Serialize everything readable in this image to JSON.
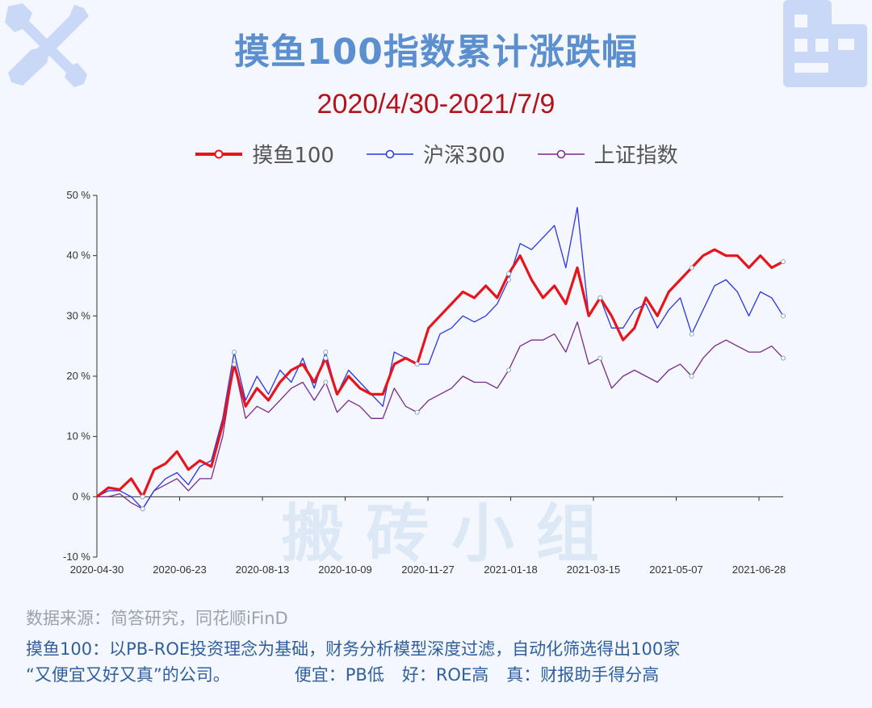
{
  "header": {
    "title": "摸鱼100指数累计涨跌幅",
    "subtitle": "2020/4/30-2021/7/9"
  },
  "watermark": "搬  砖  小  组",
  "footer": {
    "source": "数据来源：简答研究，同花顺iFinD",
    "note_line1": "摸鱼100：以PB-ROE投资理念为基础，财务分析模型深度过滤，自动化筛选得出100家",
    "note_line2_a": "“又便宜又好又真”的公司。",
    "note_line2_b": "便宜：PB低",
    "note_line2_c": "好：ROE高",
    "note_line2_d": "真：财报助手得分高"
  },
  "icons": {
    "top_left": "tools-icon",
    "top_right": "building-icon"
  },
  "colors": {
    "title": "#5b8fd0",
    "subtitle": "#b5121b",
    "moyu": "#e8141c",
    "hs300": "#2a36e6",
    "sz": "#7a2a8e"
  },
  "chart_data": {
    "type": "line",
    "x_tick_labels": [
      "2020-04-30",
      "2020-06-23",
      "2020-08-13",
      "2020-10-09",
      "2020-11-27",
      "2021-01-18",
      "2021-03-15",
      "2021-05-07",
      "2021-06-28"
    ],
    "y_tick_labels": [
      "50 %",
      "40 %",
      "30 %",
      "20 %",
      "10 %",
      "0 %",
      "-10 %"
    ],
    "ylim": [
      -10,
      50
    ],
    "grid": false,
    "legend_position": "top-center",
    "series": [
      {
        "name": "摸鱼100",
        "values": [
          0,
          1.5,
          1.2,
          3,
          0,
          4.5,
          5.5,
          7.5,
          4.5,
          6,
          5,
          12,
          22,
          15,
          18,
          16,
          19,
          21,
          22,
          19,
          23,
          17,
          20,
          18,
          17,
          17,
          22,
          23,
          22,
          28,
          30,
          32,
          34,
          33,
          35,
          33,
          37,
          40,
          36,
          33,
          35,
          32,
          38,
          30,
          33,
          30,
          26,
          28,
          33,
          30,
          34,
          36,
          38,
          40,
          41,
          40,
          40,
          38,
          40,
          38,
          39
        ]
      },
      {
        "name": "沪深300",
        "values": [
          0,
          1,
          1,
          0,
          -2,
          1,
          3,
          4,
          2,
          5,
          6,
          13,
          24,
          16,
          20,
          17,
          21,
          19,
          23,
          18,
          24,
          17,
          21,
          19,
          17,
          15,
          24,
          23,
          22,
          22,
          27,
          28,
          30,
          29,
          30,
          32,
          36,
          42,
          41,
          43,
          45,
          38,
          48,
          30,
          33,
          28,
          28,
          31,
          32,
          28,
          31,
          33,
          27,
          31,
          35,
          36,
          34,
          30,
          34,
          33,
          30
        ]
      },
      {
        "name": "上证指数",
        "values": [
          0,
          0,
          0.5,
          -1,
          -2,
          1,
          2,
          3,
          1,
          3,
          3,
          10,
          22,
          13,
          15,
          14,
          16,
          18,
          19,
          16,
          19,
          14,
          16,
          15,
          13,
          13,
          18,
          15,
          14,
          16,
          17,
          18,
          20,
          19,
          19,
          18,
          21,
          25,
          26,
          26,
          27,
          24,
          29,
          22,
          23,
          18,
          20,
          21,
          20,
          19,
          21,
          22,
          20,
          23,
          25,
          26,
          25,
          24,
          24,
          25,
          23
        ]
      }
    ]
  }
}
